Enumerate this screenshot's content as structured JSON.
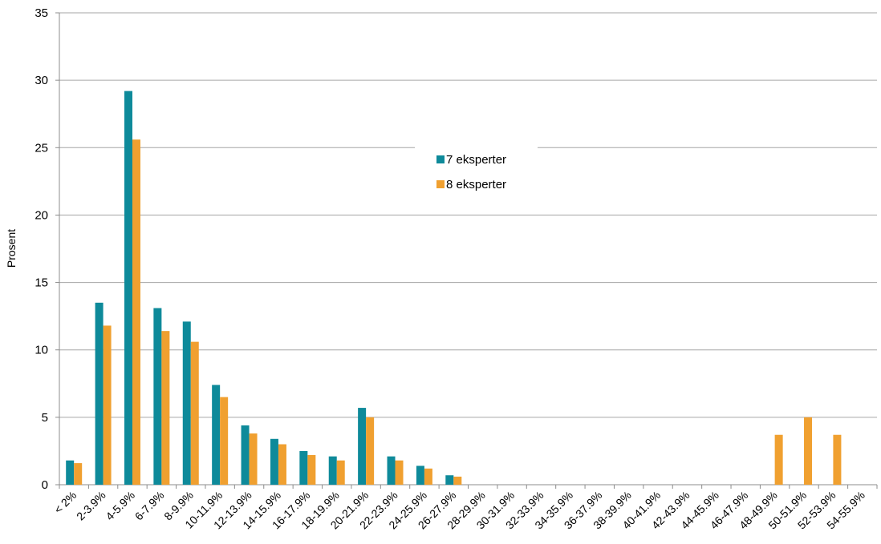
{
  "chart_data": {
    "type": "bar",
    "title": "",
    "xlabel": "",
    "ylabel": "Prosent",
    "ylim": [
      0,
      35
    ],
    "yticks": [
      0,
      5,
      10,
      15,
      20,
      25,
      30,
      35
    ],
    "grid": true,
    "legend_position": "center-top",
    "categories": [
      "< 2%",
      "2-3.9%",
      "4-5.9%",
      "6-7.9%",
      "8-9.9%",
      "10-11.9%",
      "12-13.9%",
      "14-15.9%",
      "16-17.9%",
      "18-19.9%",
      "20-21.9%",
      "22-23.9%",
      "24-25.9%",
      "26-27.9%",
      "28-29.9%",
      "30-31.9%",
      "32-33.9%",
      "34-35.9%",
      "36-37.9%",
      "38-39.9%",
      "40-41.9%",
      "42-43.9%",
      "44-45.9%",
      "46-47.9%",
      "48-49.9%",
      "50-51.9%",
      "52-53.9%",
      "54-55.9%"
    ],
    "series": [
      {
        "name": "7 eksperter",
        "color": "#0e8a9a",
        "values": [
          1.8,
          13.5,
          29.2,
          13.1,
          12.1,
          7.4,
          4.4,
          3.4,
          2.5,
          2.1,
          5.7,
          2.1,
          1.4,
          0.7,
          0,
          0,
          0,
          0,
          0,
          0,
          0,
          0,
          0,
          0,
          0,
          0,
          0,
          0
        ]
      },
      {
        "name": "8 eksperter",
        "color": "#f0a030",
        "values": [
          1.6,
          11.8,
          25.6,
          11.4,
          10.6,
          6.5,
          3.8,
          3.0,
          2.2,
          1.8,
          5.0,
          1.8,
          1.2,
          0.6,
          0,
          0,
          0,
          0,
          0,
          0,
          0,
          0,
          0,
          0,
          3.7,
          5.0,
          3.7,
          0
        ]
      }
    ]
  }
}
